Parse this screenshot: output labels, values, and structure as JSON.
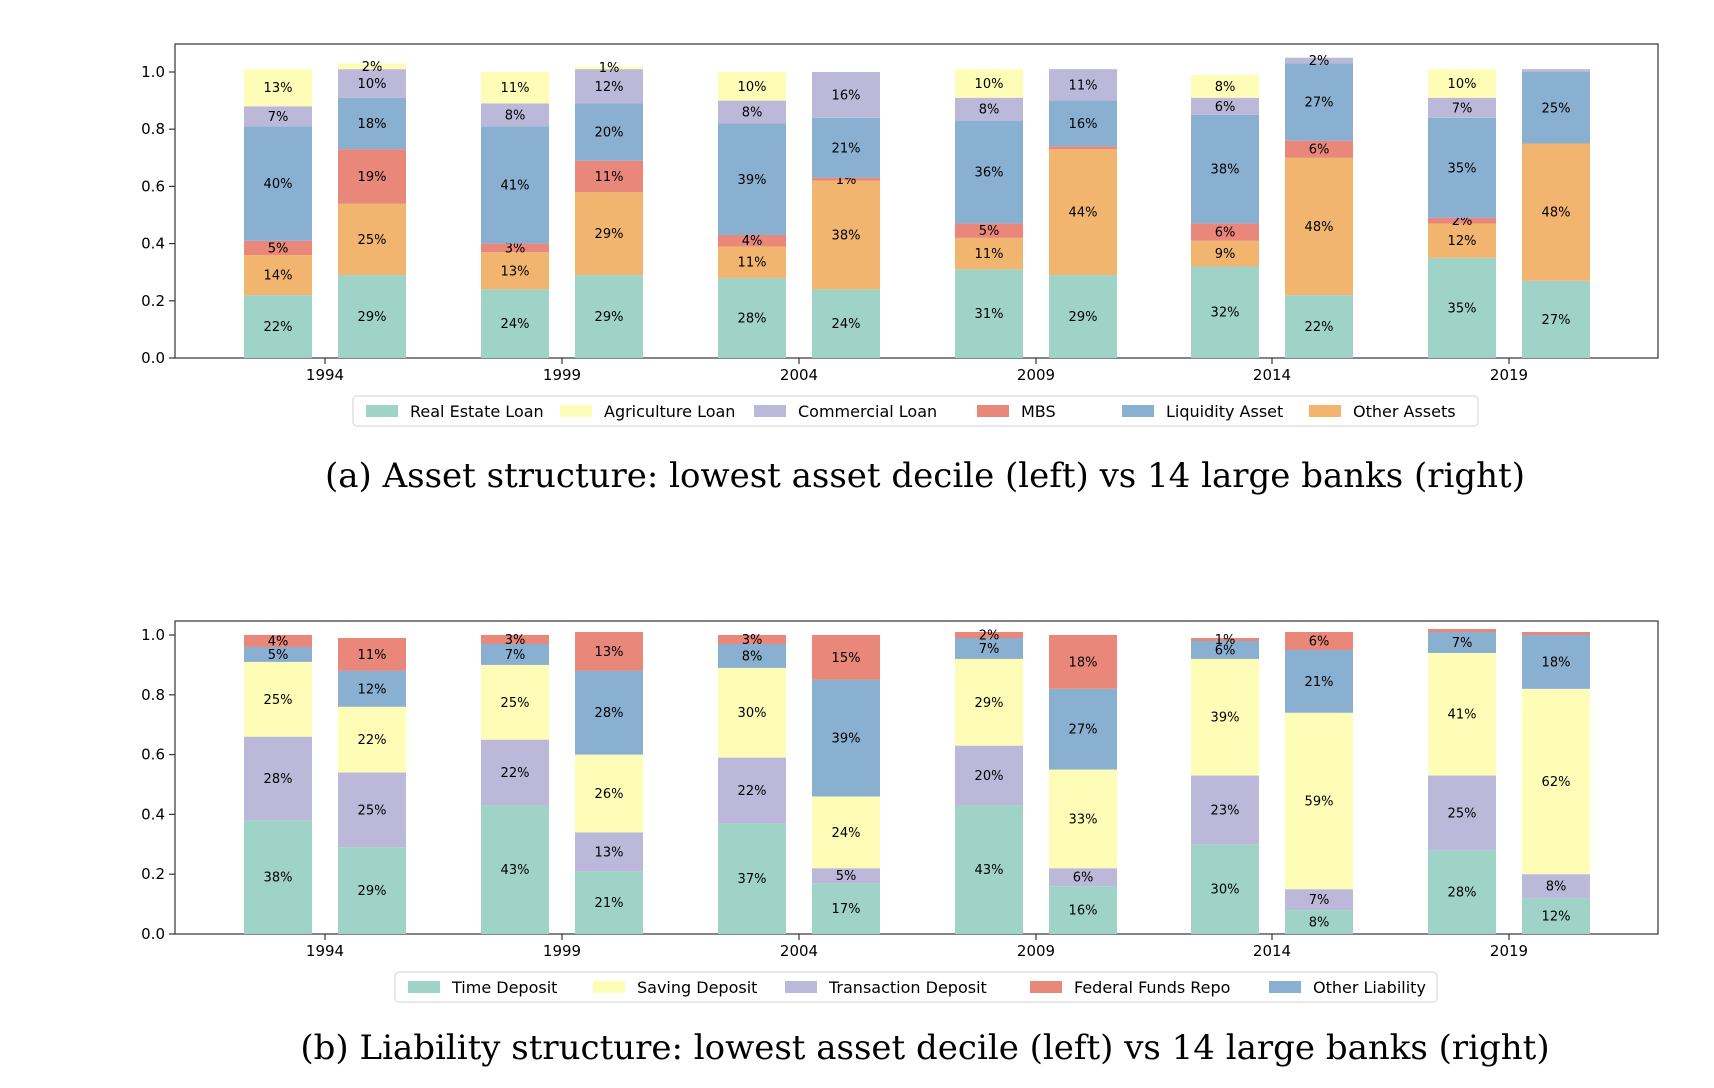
{
  "chart_data": [
    {
      "type": "bar",
      "stacked": true,
      "caption": "(a) Asset structure: lowest asset decile (left) vs 14 large banks (right)",
      "xlabel": "",
      "ylabel": "",
      "ylim": [
        0,
        1.1
      ],
      "yticks": [
        "0.0",
        "0.2",
        "0.4",
        "0.6",
        "0.8",
        "1.0"
      ],
      "categories": [
        "1994",
        "1999",
        "2004",
        "2009",
        "2014",
        "2019"
      ],
      "groups": [
        "lowest asset decile",
        "14 large banks"
      ],
      "legend_placement": "bottom-center",
      "grid": false,
      "series": [
        {
          "name": "Real Estate Loan",
          "color": "#9fd3c7",
          "left": [
            0.22,
            0.24,
            0.28,
            0.31,
            0.32,
            0.35
          ],
          "right": [
            0.29,
            0.29,
            0.24,
            0.29,
            0.22,
            0.27
          ],
          "left_labels": [
            "22%",
            "24%",
            "28%",
            "31%",
            "32%",
            "35%"
          ],
          "right_labels": [
            "29%",
            "29%",
            "24%",
            "29%",
            "22%",
            "27%"
          ]
        },
        {
          "name": "Other Assets",
          "color": "#f2b56f",
          "left": [
            0.14,
            0.13,
            0.11,
            0.11,
            0.09,
            0.12
          ],
          "right": [
            0.25,
            0.29,
            0.38,
            0.44,
            0.48,
            0.48
          ],
          "left_labels": [
            "14%",
            "13%",
            "11%",
            "11%",
            "9%",
            "12%"
          ],
          "right_labels": [
            "25%",
            "29%",
            "38%",
            "44%",
            "48%",
            "48%"
          ]
        },
        {
          "name": "MBS",
          "color": "#e8877a",
          "left": [
            0.05,
            0.03,
            0.04,
            0.05,
            0.06,
            0.02
          ],
          "right": [
            0.19,
            0.11,
            0.01,
            0.01,
            0.06,
            0.0
          ],
          "left_labels": [
            "5%",
            "3%",
            "4%",
            "5%",
            "6%",
            "2%"
          ],
          "right_labels": [
            "19%",
            "11%",
            "1%",
            "",
            "6%",
            ""
          ]
        },
        {
          "name": "Liquidity Asset",
          "color": "#89afd1",
          "left": [
            0.4,
            0.41,
            0.39,
            0.36,
            0.38,
            0.35
          ],
          "right": [
            0.18,
            0.2,
            0.21,
            0.16,
            0.27,
            0.25
          ],
          "left_labels": [
            "40%",
            "41%",
            "39%",
            "36%",
            "38%",
            "35%"
          ],
          "right_labels": [
            "18%",
            "20%",
            "21%",
            "16%",
            "27%",
            "25%"
          ]
        },
        {
          "name": "Commercial Loan",
          "color": "#bcb8d9",
          "left": [
            0.07,
            0.08,
            0.08,
            0.08,
            0.06,
            0.07
          ],
          "right": [
            0.1,
            0.12,
            0.16,
            0.11,
            0.02,
            0.01
          ],
          "left_labels": [
            "7%",
            "8%",
            "8%",
            "8%",
            "6%",
            "7%"
          ],
          "right_labels": [
            "10%",
            "12%",
            "16%",
            "11%",
            "2%",
            ""
          ]
        },
        {
          "name": "Agriculture Loan",
          "color": "#fdfdb8",
          "left": [
            0.13,
            0.11,
            0.1,
            0.1,
            0.08,
            0.1
          ],
          "right": [
            0.02,
            0.01,
            0.0,
            0.0,
            0.0,
            0.0
          ],
          "left_labels": [
            "13%",
            "11%",
            "10%",
            "10%",
            "8%",
            "10%"
          ],
          "right_labels": [
            "2%",
            "1%",
            "",
            "",
            "",
            ""
          ]
        }
      ],
      "legend_order": [
        "Real Estate Loan",
        "Agriculture Loan",
        "Commercial Loan",
        "MBS",
        "Liquidity Asset",
        "Other Assets"
      ]
    },
    {
      "type": "bar",
      "stacked": true,
      "caption": "(b) Liability structure: lowest asset decile (left) vs 14 large banks (right)",
      "xlabel": "",
      "ylabel": "",
      "ylim": [
        0,
        1.05
      ],
      "yticks": [
        "0.0",
        "0.2",
        "0.4",
        "0.6",
        "0.8",
        "1.0"
      ],
      "categories": [
        "1994",
        "1999",
        "2004",
        "2009",
        "2014",
        "2019"
      ],
      "groups": [
        "lowest asset decile",
        "14 large banks"
      ],
      "legend_placement": "bottom-center",
      "grid": false,
      "series": [
        {
          "name": "Time Deposit",
          "color": "#9fd3c7",
          "left": [
            0.38,
            0.43,
            0.37,
            0.43,
            0.3,
            0.28
          ],
          "right": [
            0.29,
            0.21,
            0.17,
            0.16,
            0.08,
            0.12
          ],
          "left_labels": [
            "38%",
            "43%",
            "37%",
            "43%",
            "30%",
            "28%"
          ],
          "right_labels": [
            "29%",
            "21%",
            "17%",
            "16%",
            "8%",
            "12%"
          ]
        },
        {
          "name": "Transaction Deposit",
          "color": "#bcb8d9",
          "left": [
            0.28,
            0.22,
            0.22,
            0.2,
            0.23,
            0.25
          ],
          "right": [
            0.25,
            0.13,
            0.05,
            0.06,
            0.07,
            0.08
          ],
          "left_labels": [
            "28%",
            "22%",
            "22%",
            "20%",
            "23%",
            "25%"
          ],
          "right_labels": [
            "25%",
            "13%",
            "5%",
            "6%",
            "7%",
            "8%"
          ]
        },
        {
          "name": "Saving Deposit",
          "color": "#fdfdb8",
          "left": [
            0.25,
            0.25,
            0.3,
            0.29,
            0.39,
            0.41
          ],
          "right": [
            0.22,
            0.26,
            0.24,
            0.33,
            0.59,
            0.62
          ],
          "left_labels": [
            "25%",
            "25%",
            "30%",
            "29%",
            "39%",
            "41%"
          ],
          "right_labels": [
            "22%",
            "26%",
            "24%",
            "33%",
            "59%",
            "62%"
          ]
        },
        {
          "name": "Other Liability",
          "color": "#89afd1",
          "left": [
            0.05,
            0.07,
            0.08,
            0.07,
            0.06,
            0.07
          ],
          "right": [
            0.12,
            0.28,
            0.39,
            0.27,
            0.21,
            0.18
          ],
          "left_labels": [
            "5%",
            "7%",
            "8%",
            "7%",
            "6%",
            "7%"
          ],
          "right_labels": [
            "12%",
            "28%",
            "39%",
            "27%",
            "21%",
            "18%"
          ]
        },
        {
          "name": "Federal Funds Repo",
          "color": "#e8877a",
          "left": [
            0.04,
            0.03,
            0.03,
            0.02,
            0.01,
            0.01
          ],
          "right": [
            0.11,
            0.13,
            0.15,
            0.18,
            0.06,
            0.01
          ],
          "left_labels": [
            "4%",
            "3%",
            "3%",
            "2%",
            "1%",
            ""
          ],
          "right_labels": [
            "11%",
            "13%",
            "15%",
            "18%",
            "6%",
            ""
          ]
        }
      ],
      "legend_order": [
        "Time Deposit",
        "Saving Deposit",
        "Transaction Deposit",
        "Federal Funds Repo",
        "Other Liability"
      ]
    }
  ]
}
